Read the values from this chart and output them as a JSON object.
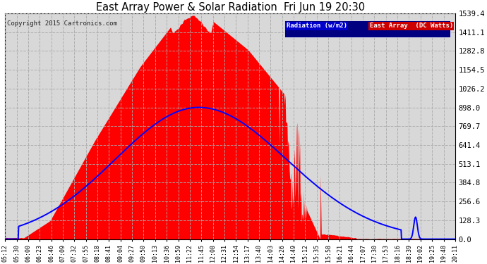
{
  "title": "East Array Power & Solar Radiation  Fri Jun 19 20:30",
  "copyright": "Copyright 2015 Cartronics.com",
  "yticks": [
    0.0,
    128.3,
    256.6,
    384.8,
    513.1,
    641.4,
    769.7,
    898.0,
    1026.2,
    1154.5,
    1282.8,
    1411.1,
    1539.4
  ],
  "ymax": 1539.4,
  "legend_labels": [
    "Radiation (w/m2)",
    "East Array  (DC Watts)"
  ],
  "legend_colors": [
    "#0000cc",
    "#cc0000"
  ],
  "bg_color": "#d8d8d8",
  "grid_color": "#aaaaaa",
  "fill_color": "#ff0000",
  "line_color": "#0000ff",
  "xtick_labels": [
    "05:12",
    "05:30",
    "06:00",
    "06:23",
    "06:46",
    "07:09",
    "07:32",
    "07:55",
    "08:18",
    "08:41",
    "09:04",
    "09:27",
    "09:50",
    "10:13",
    "10:36",
    "10:59",
    "11:22",
    "11:45",
    "12:08",
    "12:31",
    "12:54",
    "13:17",
    "13:40",
    "14:03",
    "14:26",
    "14:49",
    "15:12",
    "15:35",
    "15:58",
    "16:21",
    "16:44",
    "17:07",
    "17:30",
    "17:53",
    "18:16",
    "18:39",
    "19:02",
    "19:25",
    "19:48",
    "20:11"
  ]
}
